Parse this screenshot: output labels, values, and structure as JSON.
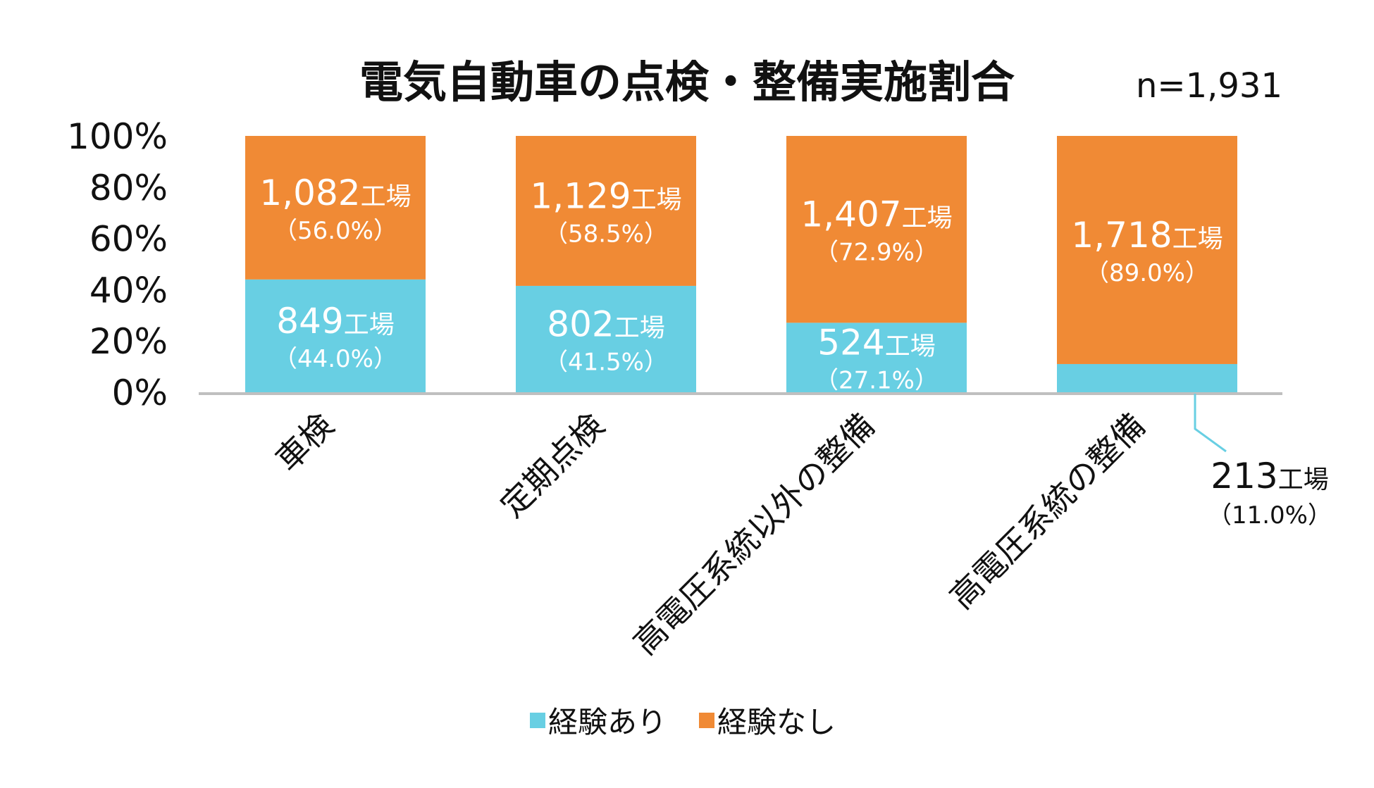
{
  "chart_data": {
    "type": "bar",
    "stacked": true,
    "title": "電気自動車の点検・整備実施割合",
    "sample_note": "n=1,931",
    "categories": [
      "車検",
      "定期点検",
      "高電圧系統以外の整備",
      "高電圧系統の整備"
    ],
    "y_ticks": [
      "0%",
      "20%",
      "40%",
      "60%",
      "80%",
      "100%"
    ],
    "ylim": [
      0,
      100
    ],
    "unit_suffix": "工場",
    "series": [
      {
        "name": "経験あり",
        "color": "#68cfe3",
        "percent": [
          44.0,
          41.5,
          27.1,
          11.0
        ],
        "counts": [
          "849",
          "802",
          "524",
          "213"
        ],
        "percent_labels": [
          "（44.0%）",
          "（41.5%）",
          "（27.1%）",
          "（11.0%）"
        ]
      },
      {
        "name": "経験なし",
        "color": "#f08a35",
        "percent": [
          56.0,
          58.5,
          72.9,
          89.0
        ],
        "counts": [
          "1,082",
          "1,129",
          "1,407",
          "1,718"
        ],
        "percent_labels": [
          "（56.0%）",
          "（58.5%）",
          "（72.9%）",
          "（89.0%）"
        ]
      }
    ],
    "axis_color": "#bfbfbf",
    "legend_position": "bottom",
    "grid": false
  }
}
